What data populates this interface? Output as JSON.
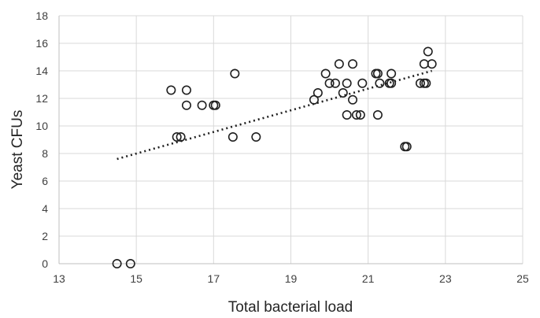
{
  "chart_data": {
    "type": "scatter",
    "xlabel": "Total bacterial load",
    "ylabel": "Yeast CFUs",
    "xlim": [
      13,
      25
    ],
    "ylim": [
      0,
      18
    ],
    "xticks": [
      "13",
      "15",
      "17",
      "19",
      "21",
      "23",
      "25"
    ],
    "yticks": [
      "0",
      "2",
      "4",
      "6",
      "8",
      "10",
      "12",
      "14",
      "16",
      "18"
    ],
    "grid": "vertical-and-horizontal",
    "series": [
      {
        "points": [
          [
            14.5,
            0.0
          ],
          [
            14.85,
            0.0
          ],
          [
            15.9,
            12.6
          ],
          [
            16.05,
            9.2
          ],
          [
            16.15,
            9.2
          ],
          [
            16.3,
            12.6
          ],
          [
            16.3,
            11.5
          ],
          [
            16.7,
            11.5
          ],
          [
            17.0,
            11.5
          ],
          [
            17.05,
            11.5
          ],
          [
            17.5,
            9.2
          ],
          [
            17.55,
            13.8
          ],
          [
            18.1,
            9.2
          ],
          [
            19.6,
            11.9
          ],
          [
            19.7,
            12.4
          ],
          [
            19.9,
            13.8
          ],
          [
            20.0,
            13.1
          ],
          [
            20.15,
            13.1
          ],
          [
            20.25,
            14.5
          ],
          [
            20.35,
            12.4
          ],
          [
            20.45,
            13.1
          ],
          [
            20.45,
            10.8
          ],
          [
            20.6,
            11.9
          ],
          [
            20.6,
            14.5
          ],
          [
            20.7,
            10.8
          ],
          [
            20.8,
            10.8
          ],
          [
            20.85,
            13.1
          ],
          [
            21.2,
            13.8
          ],
          [
            21.25,
            13.8
          ],
          [
            21.25,
            10.8
          ],
          [
            21.3,
            13.1
          ],
          [
            21.55,
            13.1
          ],
          [
            21.6,
            13.8
          ],
          [
            21.6,
            13.1
          ],
          [
            21.95,
            8.5
          ],
          [
            22.0,
            8.5
          ],
          [
            22.35,
            13.1
          ],
          [
            22.45,
            13.1
          ],
          [
            22.5,
            13.1
          ],
          [
            22.45,
            14.5
          ],
          [
            22.55,
            15.4
          ],
          [
            22.65,
            14.5
          ]
        ]
      }
    ],
    "trendline": {
      "style": "dotted",
      "x": [
        14.5,
        22.65
      ],
      "y": [
        7.6,
        14.0
      ]
    }
  }
}
